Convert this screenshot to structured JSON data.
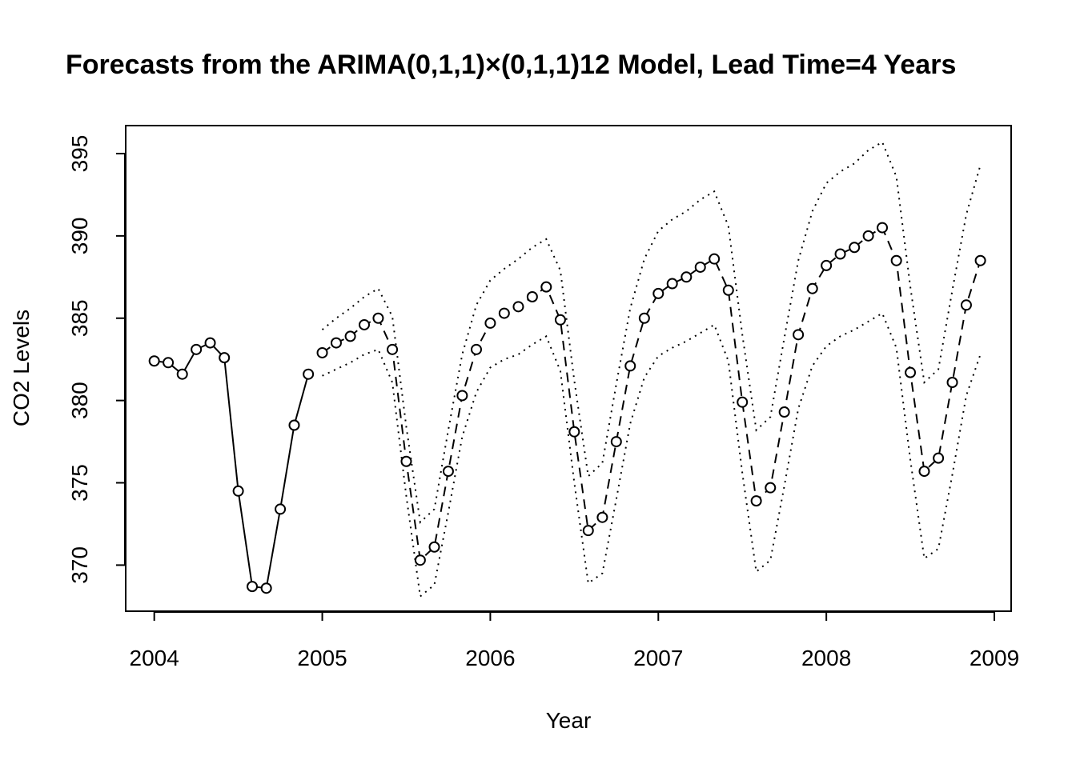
{
  "chart_data": {
    "type": "line",
    "title": "Forecasts from the ARIMA(0,1,1)×(0,1,1)12 Model, Lead Time=4 Years",
    "xlabel": "Year",
    "ylabel": "CO2 Levels",
    "xlim": [
      2003.83,
      2009.1
    ],
    "ylim": [
      367.2,
      396.7
    ],
    "x_ticks": [
      2004,
      2005,
      2006,
      2007,
      2008,
      2009
    ],
    "y_ticks": [
      370,
      375,
      380,
      385,
      390,
      395
    ],
    "grid": false,
    "series": [
      {
        "role": "observed",
        "x": [
          2004.0,
          2004.083,
          2004.167,
          2004.25,
          2004.333,
          2004.417,
          2004.5,
          2004.583,
          2004.667,
          2004.75,
          2004.833,
          2004.917
        ],
        "values": [
          382.4,
          382.3,
          381.6,
          383.1,
          383.5,
          382.6,
          374.5,
          368.7,
          368.6,
          373.4,
          378.5,
          381.6
        ]
      },
      {
        "role": "forecast",
        "x": [
          2005.0,
          2005.083,
          2005.167,
          2005.25,
          2005.333,
          2005.417,
          2005.5,
          2005.583,
          2005.667,
          2005.75,
          2005.833,
          2005.917,
          2006.0,
          2006.083,
          2006.167,
          2006.25,
          2006.333,
          2006.417,
          2006.5,
          2006.583,
          2006.667,
          2006.75,
          2006.833,
          2006.917,
          2007.0,
          2007.083,
          2007.167,
          2007.25,
          2007.333,
          2007.417,
          2007.5,
          2007.583,
          2007.667,
          2007.75,
          2007.833,
          2007.917,
          2008.0,
          2008.083,
          2008.167,
          2008.25,
          2008.333,
          2008.417,
          2008.5,
          2008.583,
          2008.667,
          2008.75,
          2008.833,
          2008.917
        ],
        "values": [
          382.9,
          383.5,
          383.9,
          384.6,
          385.0,
          383.1,
          376.3,
          370.3,
          371.1,
          375.7,
          380.3,
          383.1,
          384.7,
          385.3,
          385.7,
          386.3,
          386.9,
          384.9,
          378.1,
          372.1,
          372.9,
          377.5,
          382.1,
          385.0,
          386.5,
          387.1,
          387.5,
          388.1,
          388.6,
          386.7,
          379.9,
          373.9,
          374.7,
          379.3,
          384.0,
          386.8,
          388.2,
          388.9,
          389.3,
          390.0,
          390.5,
          388.5,
          381.7,
          375.7,
          376.5,
          381.1,
          385.8,
          388.5
        ]
      },
      {
        "role": "upper",
        "values": [
          384.3,
          385.0,
          385.6,
          386.3,
          386.8,
          385.1,
          378.4,
          372.6,
          373.4,
          378.2,
          382.8,
          385.8,
          387.3,
          388.0,
          388.6,
          389.3,
          389.8,
          387.9,
          381.2,
          375.4,
          376.2,
          381.0,
          385.6,
          388.6,
          390.3,
          391.0,
          391.5,
          392.2,
          392.7,
          390.6,
          384.0,
          378.2,
          379.0,
          383.8,
          388.5,
          391.5,
          393.2,
          393.9,
          394.4,
          395.2,
          395.7,
          393.6,
          386.9,
          381.1,
          381.9,
          386.7,
          391.3,
          394.3
        ]
      },
      {
        "role": "lower",
        "values": [
          381.5,
          381.9,
          382.3,
          382.8,
          383.1,
          381.1,
          374.2,
          368.1,
          368.8,
          373.2,
          377.8,
          380.5,
          382.0,
          382.5,
          382.8,
          383.4,
          383.9,
          381.8,
          375.0,
          368.9,
          369.5,
          374.0,
          378.6,
          381.4,
          382.7,
          383.2,
          383.6,
          384.1,
          384.6,
          382.4,
          375.6,
          369.6,
          370.3,
          374.8,
          379.5,
          382.1,
          383.3,
          383.9,
          384.3,
          384.8,
          385.3,
          383.2,
          376.4,
          370.4,
          371.0,
          375.5,
          380.3,
          382.8
        ]
      }
    ]
  }
}
